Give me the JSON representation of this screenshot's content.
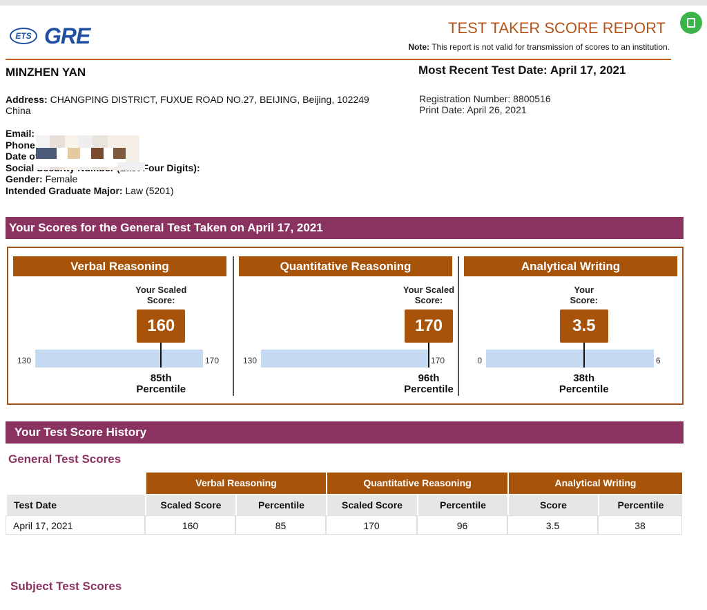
{
  "header": {
    "logo_ets": "ETS",
    "logo_gre": "GRE",
    "title": "TEST TAKER SCORE REPORT",
    "note_label": "Note:",
    "note_text": "This report is not valid for transmission of scores to an institution."
  },
  "candidate": {
    "name": "MINZHEN YAN",
    "recent_label": "Most Recent Test Date:",
    "recent_date": "April 17, 2021",
    "address_label": "Address:",
    "address": "CHANGPING DISTRICT, FUXUE ROAD NO.27, BEIJING, Beijing, 102249",
    "country": "China",
    "registration": "Registration Number: 8800516",
    "print_date": "Print Date: April 26, 2021",
    "email_label": "Email:",
    "phone_label": "Phone",
    "dob_label": "Date of",
    "ssn_label": "Social Security Number (Last Four Digits):",
    "gender_label": "Gender:",
    "gender": "Female",
    "major_label": "Intended Graduate Major:",
    "major": "Law (5201)"
  },
  "scores": {
    "title": "Your Scores for the General Test Taken on April 17, 2021",
    "sections": [
      {
        "name": "Verbal Reasoning",
        "score_label": "Your Scaled Score:",
        "score": 160,
        "min": 130,
        "max": 170,
        "percentile": "85th",
        "percentile_label": "Percentile"
      },
      {
        "name": "Quantitative Reasoning",
        "score_label": "Your Scaled Score:",
        "score": 170,
        "min": 130,
        "max": 170,
        "percentile": "96th",
        "percentile_label": "Percentile"
      },
      {
        "name": "Analytical Writing",
        "score_label": "Your Score:",
        "score": 3.5,
        "min": 0,
        "max": 6,
        "percentile": "38th",
        "percentile_label": "Percentile"
      }
    ]
  },
  "history": {
    "title": "Your Test Score History",
    "general_title": "General Test Scores",
    "groups": [
      "Verbal Reasoning",
      "Quantitative Reasoning",
      "Analytical Writing"
    ],
    "columns": [
      "Test Date",
      "Scaled Score",
      "Percentile",
      "Scaled Score",
      "Percentile",
      "Score",
      "Percentile"
    ],
    "rows": [
      [
        "April 17, 2021",
        160,
        85,
        170,
        96,
        3.5,
        38
      ]
    ],
    "subject_title": "Subject Test Scores"
  }
}
